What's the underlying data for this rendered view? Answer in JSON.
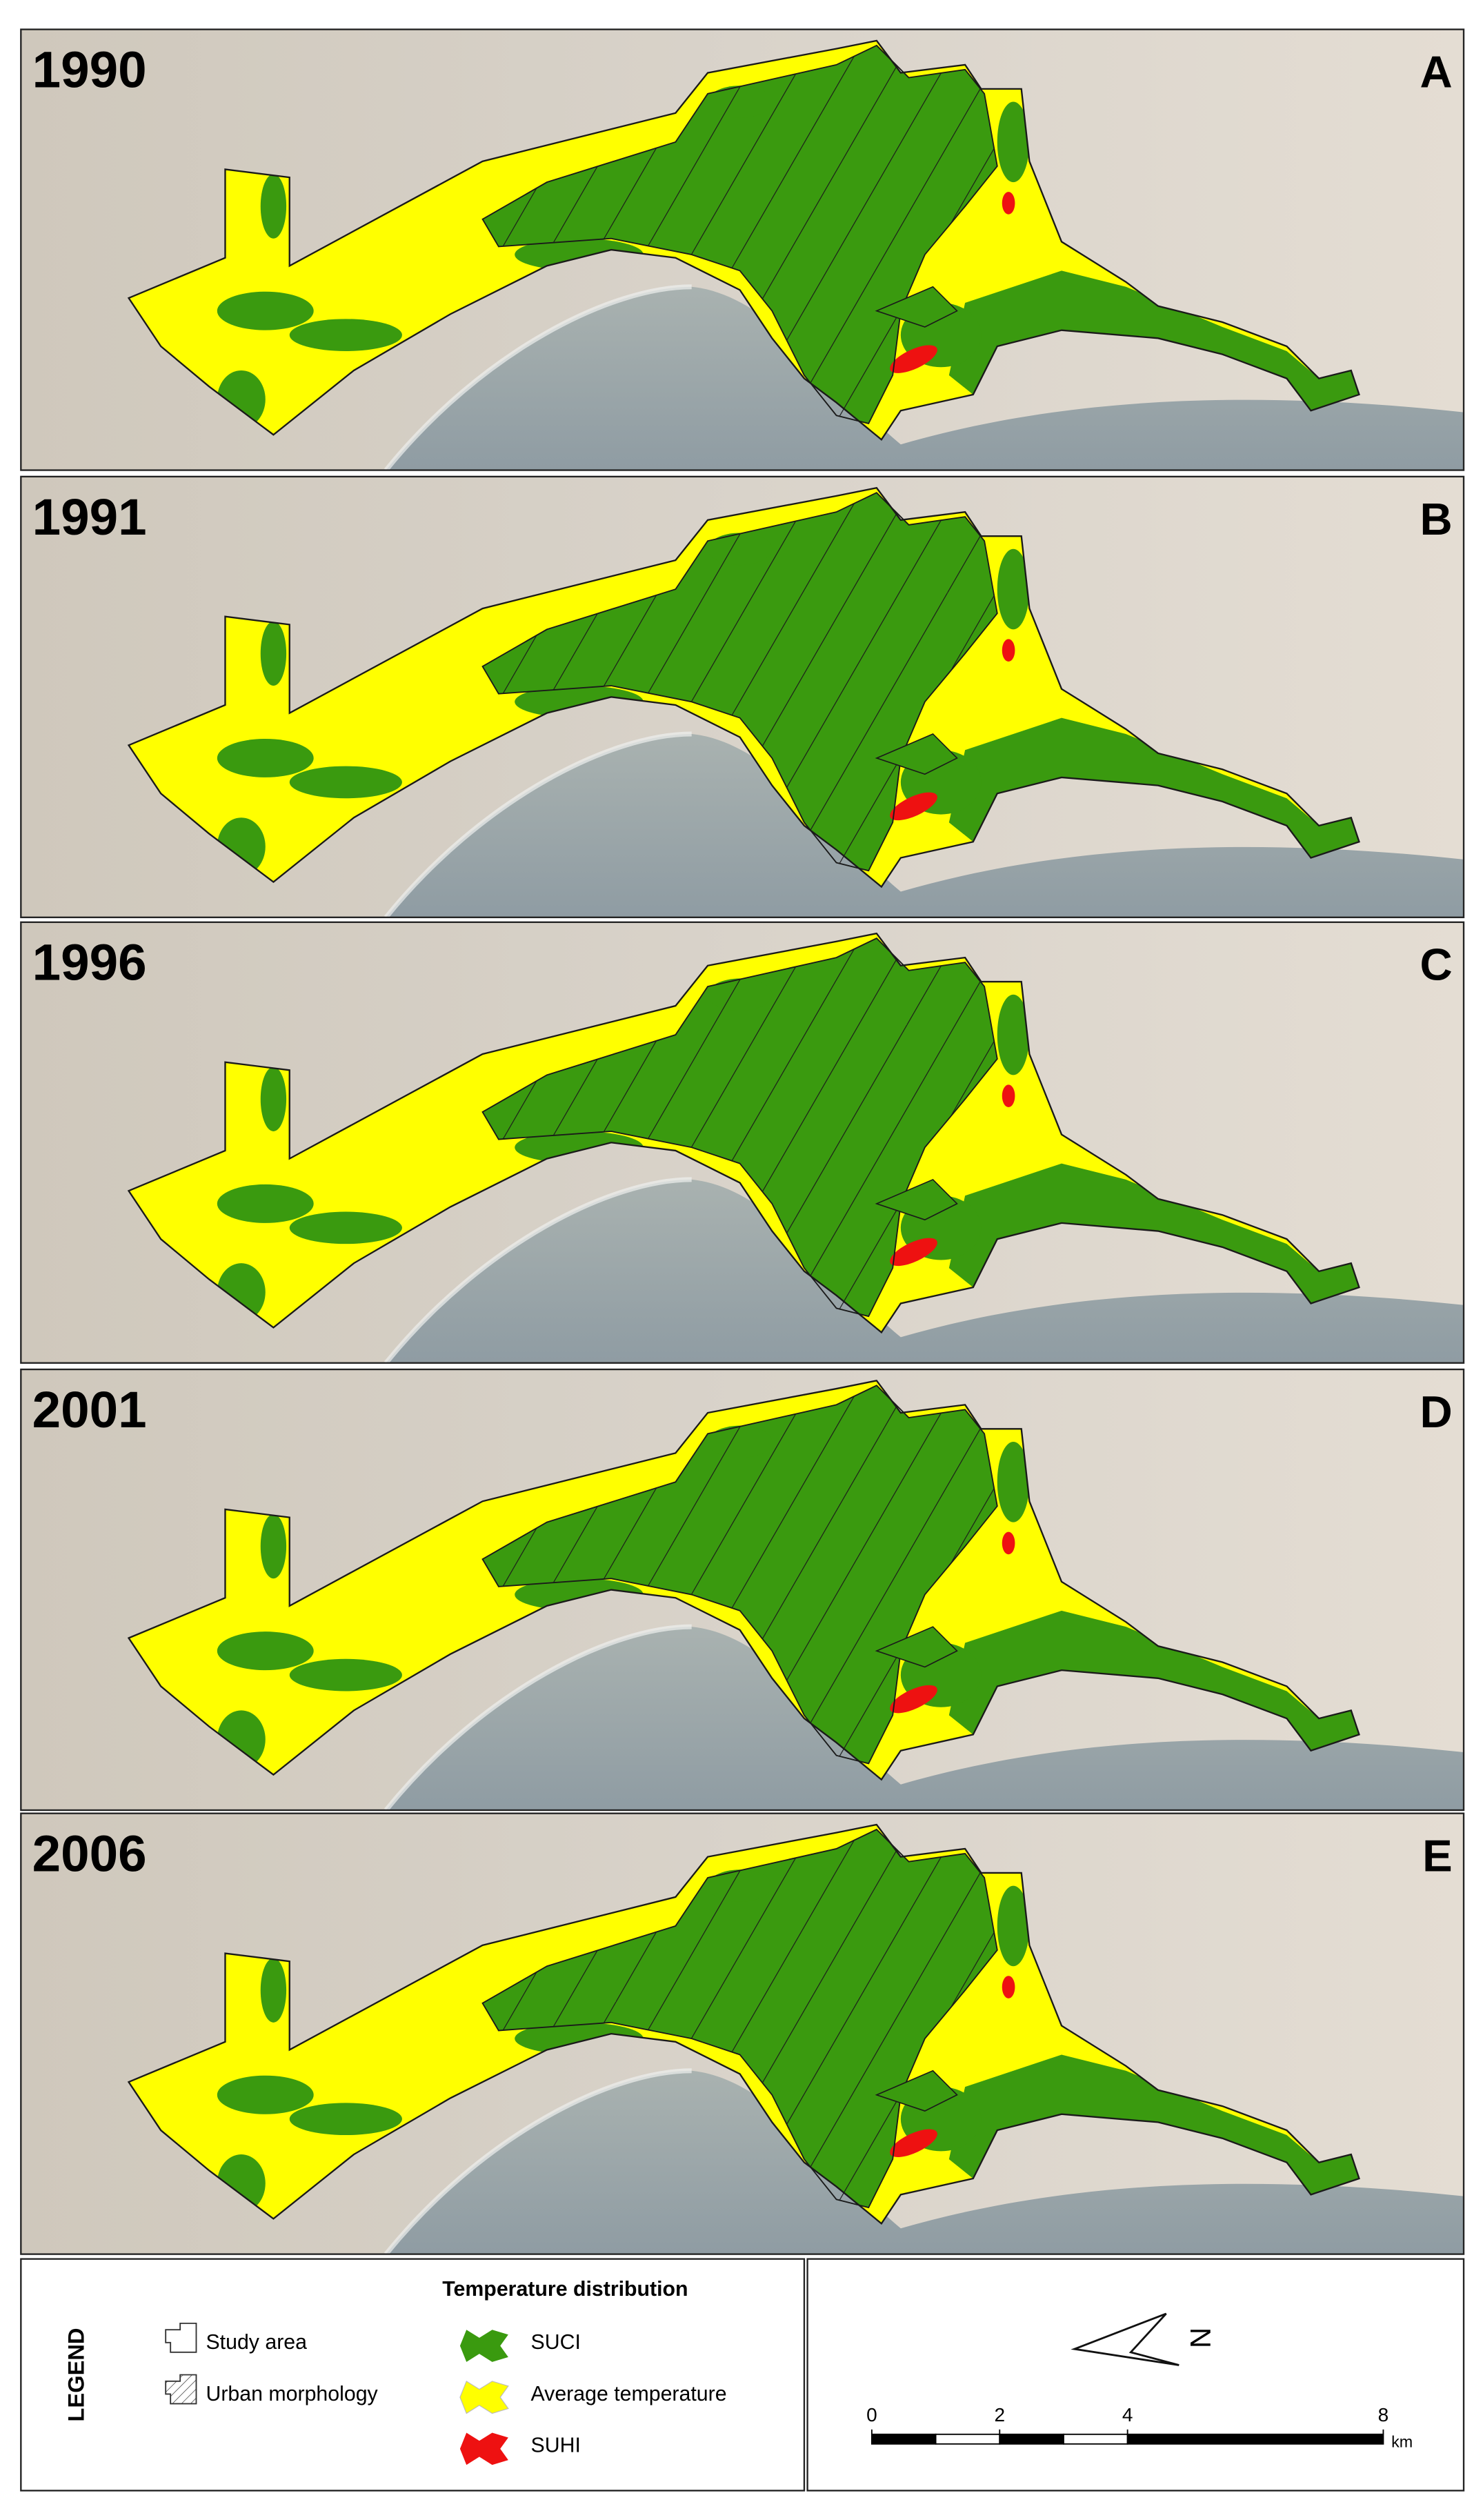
{
  "panels": [
    {
      "year": "1990",
      "label": "A"
    },
    {
      "year": "1991",
      "label": "B"
    },
    {
      "year": "1996",
      "label": "C"
    },
    {
      "year": "2001",
      "label": "D"
    },
    {
      "year": "2006",
      "label": "E"
    }
  ],
  "legend": {
    "title": "LEGEND",
    "items": [
      "Study area",
      "Urban morphology"
    ],
    "temperature_title": "Temperature distribution",
    "temperature_items": [
      "SUCI",
      "Average temperature",
      "SUHI"
    ]
  },
  "north_label": "N",
  "scale_bar": {
    "ticks": [
      0,
      2,
      4,
      8
    ],
    "unit": "km"
  }
}
